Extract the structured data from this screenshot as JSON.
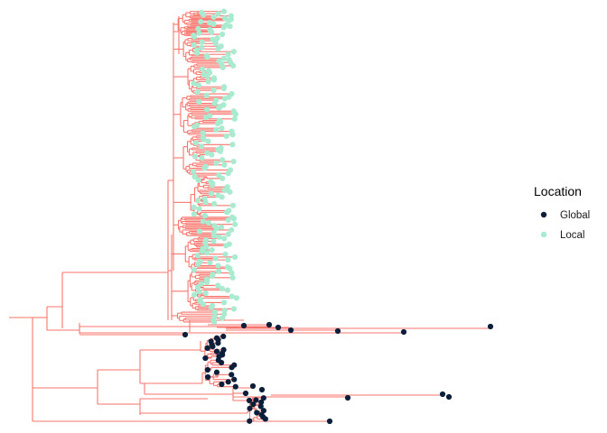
{
  "chart_data": {
    "type": "phylogenetic-tree",
    "branch_color": "#F8766D",
    "legend": {
      "title": "Location",
      "placement": "right",
      "entries": [
        {
          "label": "Global",
          "color": "#0B1F3A"
        },
        {
          "label": "Local",
          "color": "#A8EBD0"
        }
      ]
    },
    "clades": [
      {
        "name": "Local",
        "approx_tip_count": 230
      },
      {
        "name": "Global",
        "approx_tip_count": 75
      }
    ],
    "grid": false,
    "axes_visible": false
  }
}
